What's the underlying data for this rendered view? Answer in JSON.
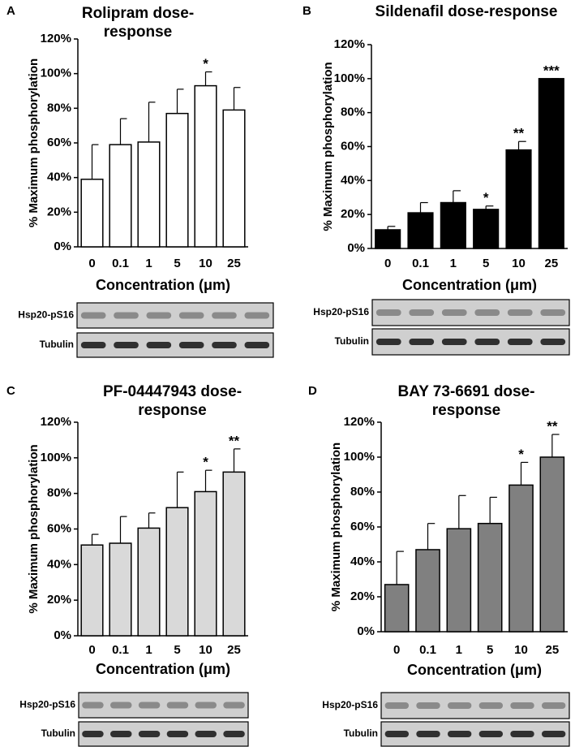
{
  "chart_data": [
    {
      "type": "bar",
      "panel": "A",
      "title": "Rolipram dose-response",
      "xlabel": "Concentration (μm)",
      "ylabel": "% Maximum phosphorylation",
      "categories": [
        "0",
        "0.1",
        "1",
        "5",
        "10",
        "25"
      ],
      "values": [
        39,
        59,
        60.5,
        77,
        93,
        79
      ],
      "errors": [
        20,
        15,
        23,
        14,
        8,
        13
      ],
      "annotations": [
        null,
        null,
        null,
        null,
        "*",
        null
      ],
      "color": "#ffffff",
      "ylim": [
        0,
        120
      ],
      "yticks": [
        {
          "value": 0,
          "label": "0%"
        },
        {
          "value": 20,
          "label": "20%"
        },
        {
          "value": 40,
          "label": "40%"
        },
        {
          "value": 60,
          "label": "60%"
        },
        {
          "value": 80,
          "label": "80%"
        },
        {
          "value": 100,
          "label": "100%"
        },
        {
          "value": 120,
          "label": "120%"
        }
      ],
      "blots": [
        "Hsp20-pS16",
        "Tubulin"
      ]
    },
    {
      "type": "bar",
      "panel": "B",
      "title": "Sildenafil dose-response",
      "xlabel": "Concentration (μm)",
      "ylabel": "% Maximum phosphorylation",
      "categories": [
        "0",
        "0.1",
        "1",
        "5",
        "10",
        "25"
      ],
      "values": [
        11,
        21,
        27,
        23,
        58,
        100
      ],
      "errors": [
        2,
        6,
        7,
        2,
        5,
        0
      ],
      "annotations": [
        null,
        null,
        null,
        "*",
        "**",
        "***"
      ],
      "color": "#000000",
      "ylim": [
        0,
        120
      ],
      "yticks": [
        {
          "value": 0,
          "label": "0%"
        },
        {
          "value": 20,
          "label": "20%"
        },
        {
          "value": 40,
          "label": "40%"
        },
        {
          "value": 60,
          "label": "60%"
        },
        {
          "value": 80,
          "label": "80%"
        },
        {
          "value": 100,
          "label": "100%"
        },
        {
          "value": 120,
          "label": "120%"
        }
      ],
      "blots": [
        "Hsp20-pS16",
        "Tubulin"
      ]
    },
    {
      "type": "bar",
      "panel": "C",
      "title": "PF-04447943 dose-response",
      "xlabel": "Concentration (μm)",
      "ylabel": "% Maximum phosphorylation",
      "categories": [
        "0",
        "0.1",
        "1",
        "5",
        "10",
        "25"
      ],
      "values": [
        51,
        52,
        60.5,
        72,
        81,
        92
      ],
      "errors": [
        6,
        15,
        8.5,
        20,
        12,
        13
      ],
      "annotations": [
        null,
        null,
        null,
        null,
        "*",
        "**"
      ],
      "color": "#d9d9d9",
      "ylim": [
        0,
        120
      ],
      "yticks": [
        {
          "value": 0,
          "label": "0%"
        },
        {
          "value": 20,
          "label": "20%"
        },
        {
          "value": 40,
          "label": "40%"
        },
        {
          "value": 60,
          "label": "60%"
        },
        {
          "value": 80,
          "label": "80%"
        },
        {
          "value": 100,
          "label": "100%"
        },
        {
          "value": 120,
          "label": "120%"
        }
      ],
      "blots": [
        "Hsp20-pS16",
        "Tubulin"
      ]
    },
    {
      "type": "bar",
      "panel": "D",
      "title": "BAY 73-6691 dose-response",
      "xlabel": "Concentration (μm)",
      "ylabel": "% Maximum phosphorylation",
      "categories": [
        "0",
        "0.1",
        "1",
        "5",
        "10",
        "25"
      ],
      "values": [
        27,
        47,
        59,
        62,
        84,
        100
      ],
      "errors": [
        19,
        15,
        19,
        15,
        13,
        13
      ],
      "annotations": [
        null,
        null,
        null,
        null,
        "*",
        "**"
      ],
      "color": "#808080",
      "ylim": [
        0,
        120
      ],
      "yticks": [
        {
          "value": 0,
          "label": "0%"
        },
        {
          "value": 20,
          "label": "20%"
        },
        {
          "value": 40,
          "label": "40%"
        },
        {
          "value": 60,
          "label": "60%"
        },
        {
          "value": 80,
          "label": "80%"
        },
        {
          "value": 100,
          "label": "100%"
        },
        {
          "value": 120,
          "label": "120%"
        }
      ],
      "blots": [
        "Hsp20-pS16",
        "Tubulin"
      ]
    }
  ]
}
